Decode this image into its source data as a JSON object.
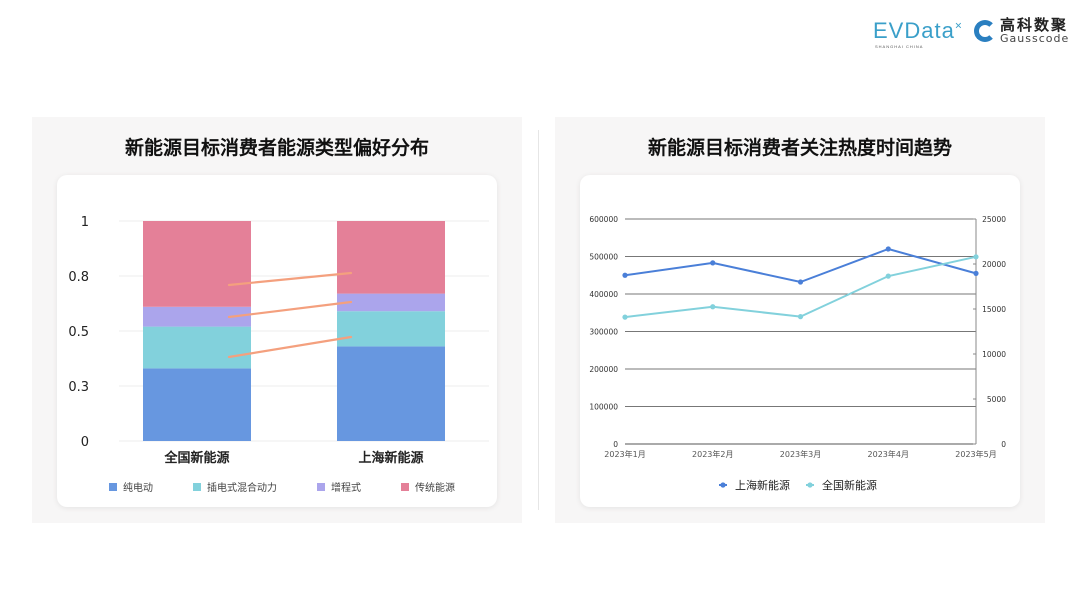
{
  "logos": {
    "evdata": "EVData",
    "evdata_sub": "SHANGHAI CHINA",
    "gauss_cn": "高科数聚",
    "gauss_en": "Gausscode"
  },
  "chart_data": [
    {
      "type": "bar",
      "stacked": true,
      "title": "新能源目标消费者能源类型偏好分布",
      "categories": [
        "全国新能源",
        "上海新能源"
      ],
      "yticks": [
        "0",
        "0.3",
        "0.5",
        "0.8",
        "1"
      ],
      "ylim": [
        0,
        1
      ],
      "grid": true,
      "legend": "bottom",
      "series": [
        {
          "name": "纯电动",
          "color": "#6797e0",
          "values": [
            0.33,
            0.43
          ]
        },
        {
          "name": "插电式混合动力",
          "color": "#82d1dc",
          "values": [
            0.19,
            0.16
          ]
        },
        {
          "name": "增程式",
          "color": "#aba5ec",
          "values": [
            0.09,
            0.08
          ]
        },
        {
          "name": "传统能源",
          "color": "#e48098",
          "values": [
            0.39,
            0.33
          ]
        }
      ],
      "connector_color": "#f4a07e"
    },
    {
      "type": "line",
      "title": "新能源目标消费者关注热度时间趋势",
      "categories": [
        "2023年1月",
        "2023年2月",
        "2023年3月",
        "2023年4月",
        "2023年5月"
      ],
      "ylim": [
        0,
        600000
      ],
      "y2lim": [
        0,
        25000
      ],
      "yticks": [
        "0",
        "100000",
        "200000",
        "300000",
        "400000",
        "500000",
        "600000"
      ],
      "y2ticks": [
        "0",
        "5000",
        "10000",
        "15000",
        "20000",
        "25000"
      ],
      "grid": true,
      "legend": "bottom",
      "series": [
        {
          "name": "上海新能源",
          "axis": "left",
          "color": "#4a7fd8",
          "values": [
            450000,
            483000,
            432000,
            520000,
            455000
          ]
        },
        {
          "name": "全国新能源",
          "axis": "right",
          "color": "#82d1dc",
          "values": [
            14100,
            15250,
            14150,
            18650,
            20800
          ]
        }
      ]
    }
  ]
}
